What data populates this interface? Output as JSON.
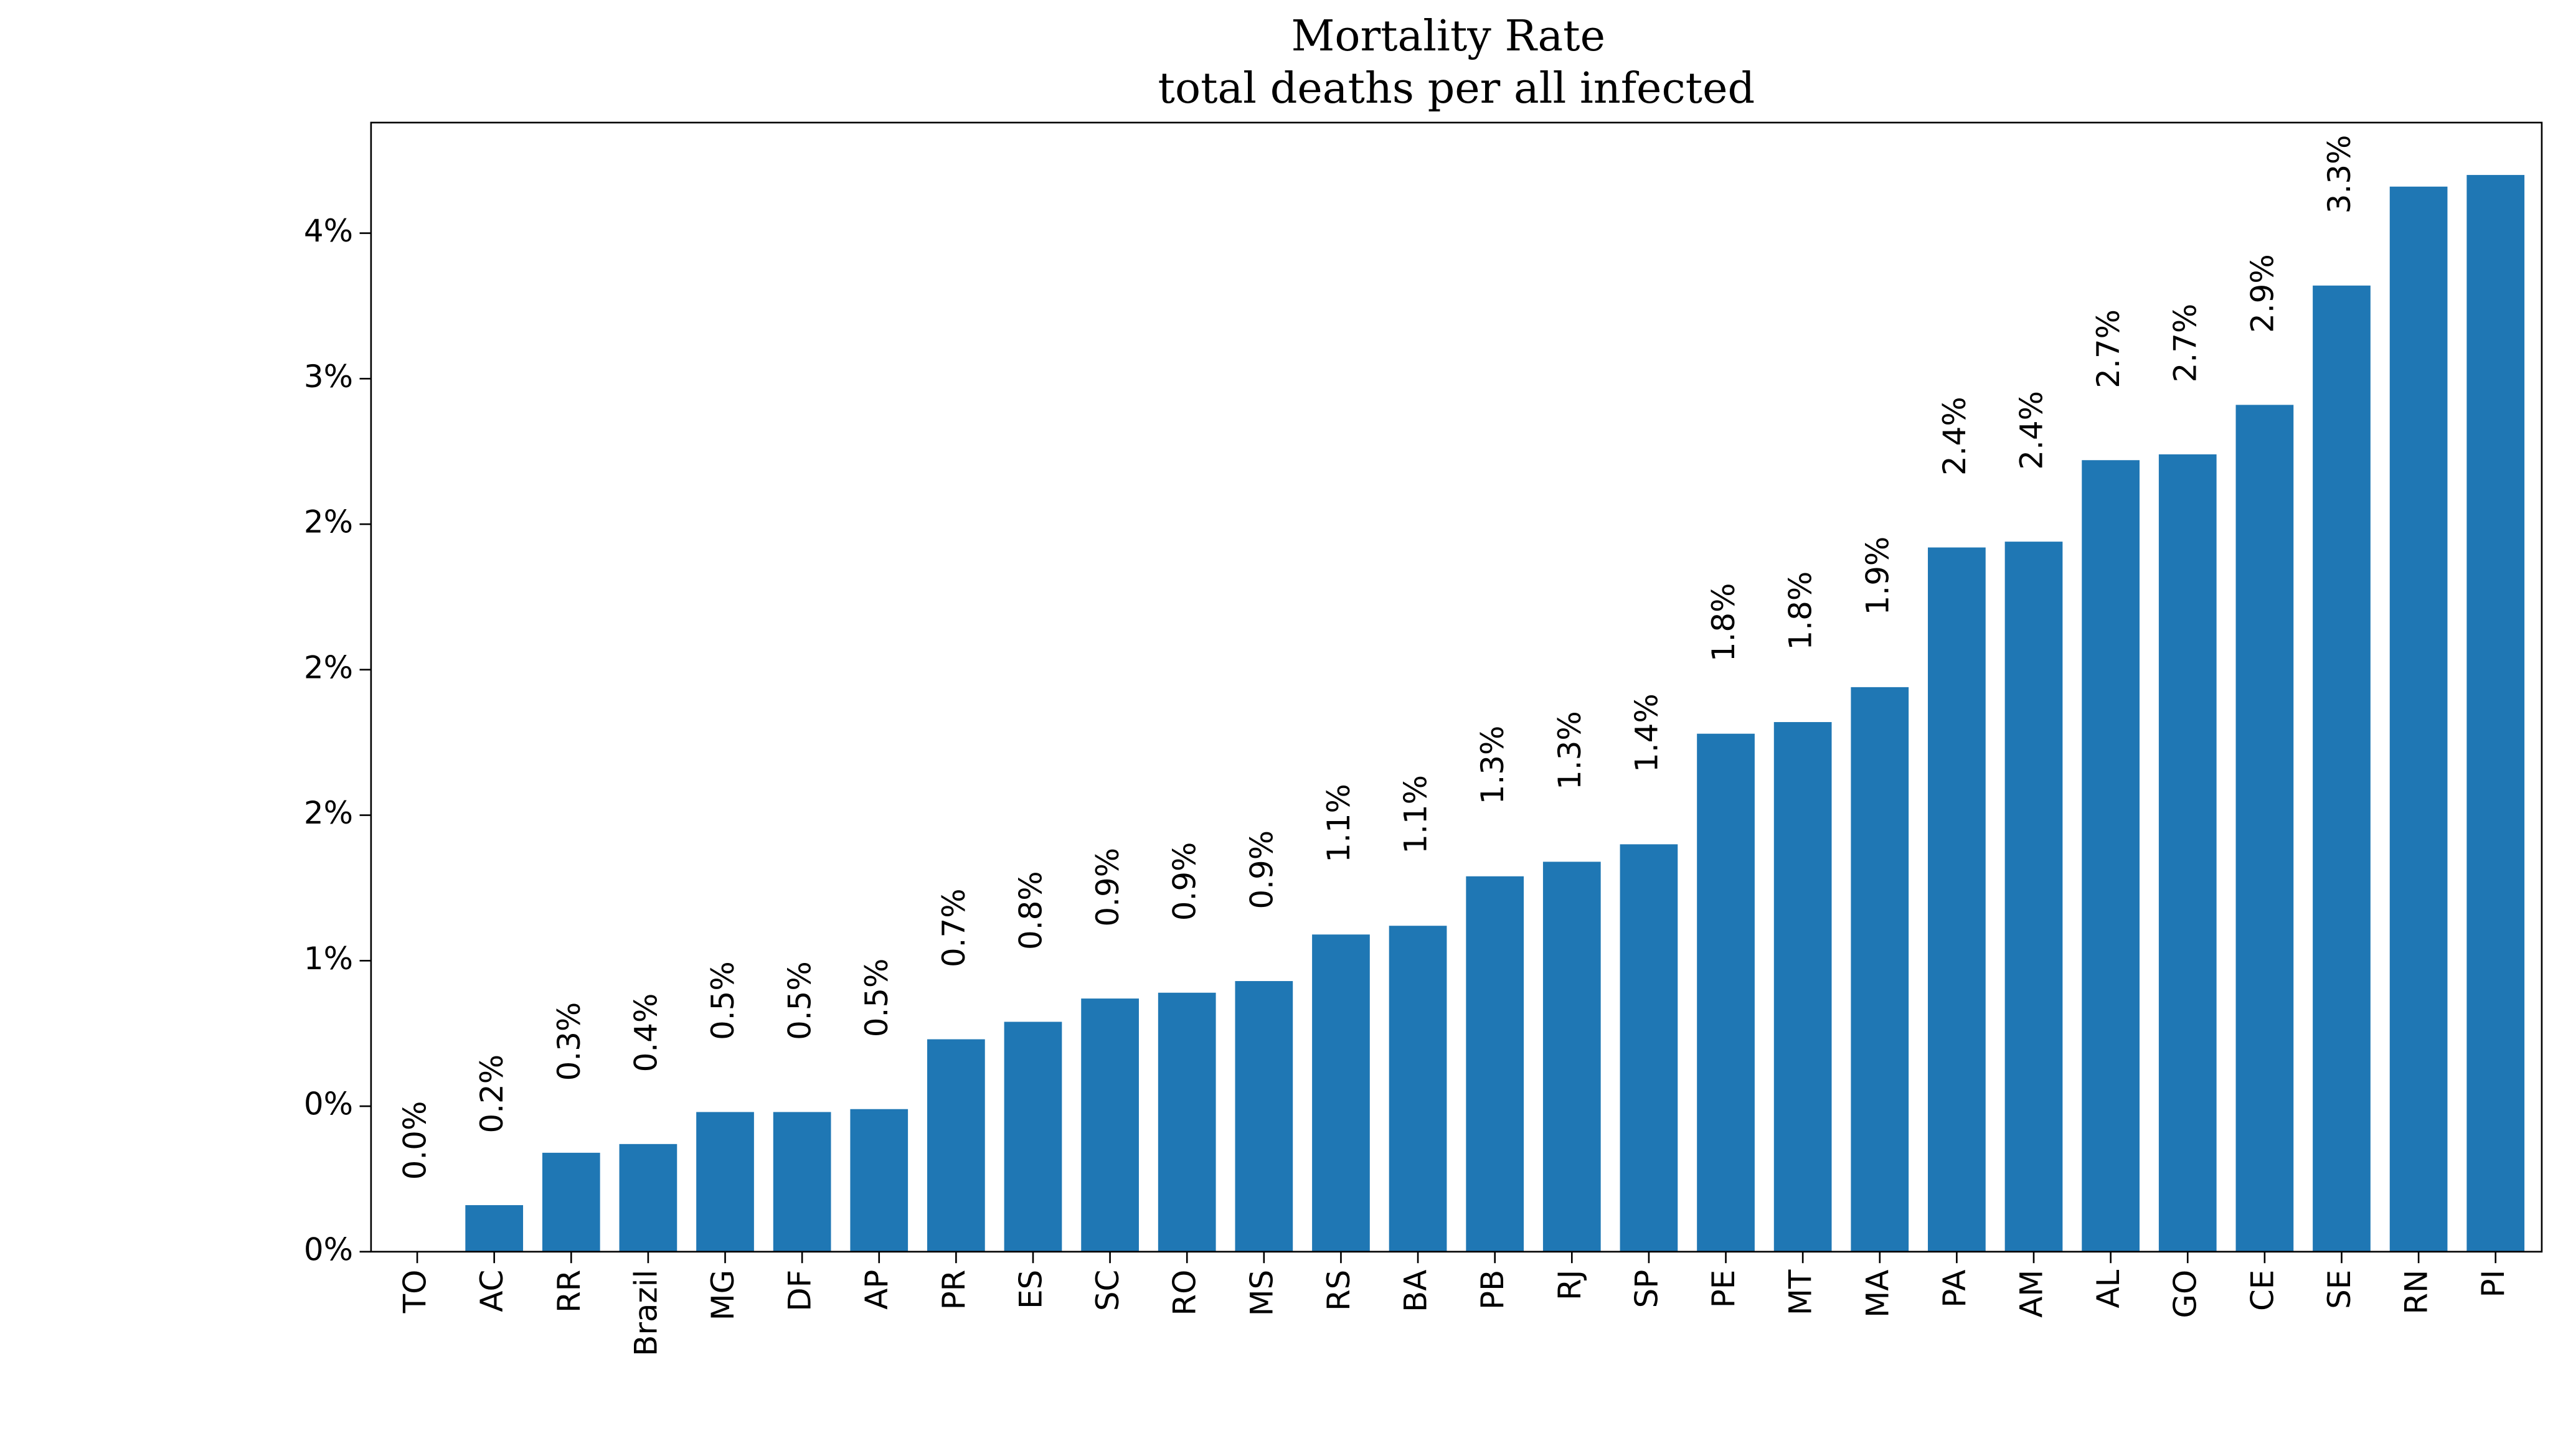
{
  "chart_data": {
    "type": "bar",
    "title": "Mortality Rate",
    "subtitle": "total deaths per all infected",
    "categories": [
      "TO",
      "AC",
      "RR",
      "Brazil",
      "MG",
      "DF",
      "AP",
      "PR",
      "ES",
      "SC",
      "RO",
      "MS",
      "RS",
      "BA",
      "PB",
      "RJ",
      "SP",
      "PE",
      "MT",
      "MA",
      "PA",
      "AM",
      "AL",
      "GO",
      "CE",
      "SE",
      "RN",
      "PI"
    ],
    "values": [
      0.0,
      0.16,
      0.34,
      0.37,
      0.48,
      0.48,
      0.49,
      0.73,
      0.79,
      0.87,
      0.89,
      0.93,
      1.09,
      1.12,
      1.29,
      1.34,
      1.4,
      1.78,
      1.82,
      1.94,
      2.42,
      2.44,
      2.72,
      2.74,
      2.91,
      3.32,
      3.66,
      3.7
    ],
    "value_labels": [
      "0.0%",
      "0.2%",
      "0.3%",
      "0.4%",
      "0.5%",
      "0.5%",
      "0.5%",
      "0.7%",
      "0.8%",
      "0.9%",
      "0.9%",
      "0.9%",
      "1.1%",
      "1.1%",
      "1.3%",
      "1.3%",
      "1.4%",
      "1.8%",
      "1.8%",
      "1.9%",
      "2.4%",
      "2.4%",
      "2.7%",
      "2.7%",
      "2.9%",
      "3.3%",
      null,
      null
    ],
    "color": "#1f77b4",
    "ylim": [
      0,
      3.88
    ],
    "yticks": [
      {
        "value": 0,
        "label": "0%"
      },
      {
        "value": 0.5,
        "label": "0%"
      },
      {
        "value": 1,
        "label": "1%"
      },
      {
        "value": 1.5,
        "label": "2%"
      },
      {
        "value": 2,
        "label": "2%"
      },
      {
        "value": 2.5,
        "label": "2%"
      },
      {
        "value": 3,
        "label": "3%"
      },
      {
        "value": 3.5,
        "label": "4%"
      }
    ],
    "grid": false
  }
}
